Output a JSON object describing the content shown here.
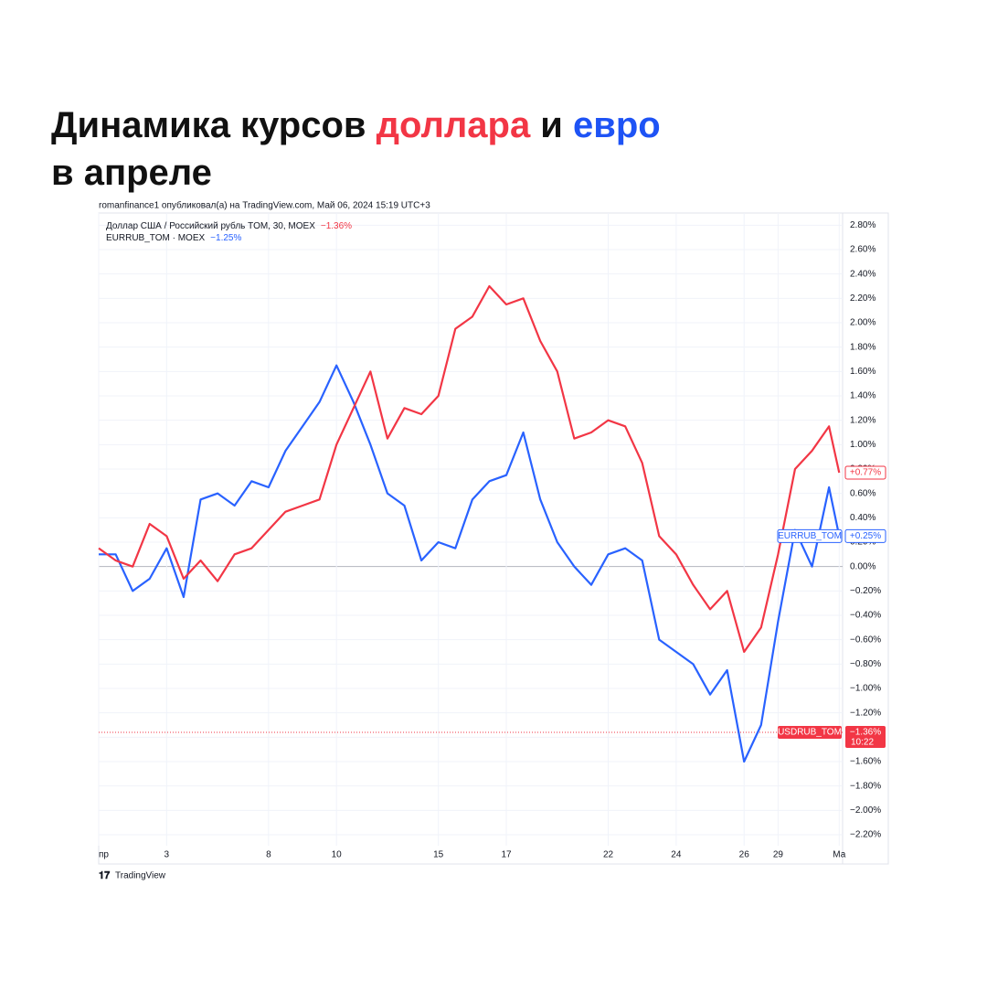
{
  "title_parts": [
    "Динамика курсов ",
    "доллара",
    " и ",
    "евро"
  ],
  "title_line2": "в апреле",
  "attribution": "romanfinance1 опубликовал(а) на TradingView.com, Май 06, 2024 15:19 UTC+3",
  "footer": "TradingView",
  "chart_data": {
    "type": "line",
    "x": [
      0,
      0.5,
      1,
      1.5,
      2,
      2.5,
      3,
      3.5,
      4,
      4.5,
      5,
      5.5,
      6,
      6.5,
      7,
      7.5,
      8,
      8.5,
      9,
      9.5,
      10,
      10.5,
      11,
      11.5,
      12,
      12.5,
      13,
      13.5,
      14,
      14.5,
      15,
      15.5,
      16,
      16.5,
      17,
      17.5,
      18,
      18.5,
      19,
      19.5,
      20,
      20.5,
      21,
      21.5,
      21.8
    ],
    "series": [
      {
        "name": "Доллар США / Российский рубль TOM, 30, MOEX",
        "change": "−1.36%",
        "badge_name": "USDRUB_TOM",
        "badge_value": "+0.77%",
        "color": "#f23645",
        "values": [
          0.15,
          0.05,
          0.0,
          0.35,
          0.25,
          -0.1,
          0.05,
          -0.12,
          0.1,
          0.15,
          0.3,
          0.45,
          0.5,
          0.55,
          1.0,
          1.3,
          1.6,
          1.05,
          1.3,
          1.25,
          1.4,
          1.95,
          2.05,
          2.3,
          2.15,
          2.2,
          1.85,
          1.6,
          1.05,
          1.1,
          1.2,
          1.15,
          0.85,
          0.25,
          0.1,
          -0.15,
          -0.35,
          -0.2,
          -0.7,
          -0.5,
          0.1,
          0.8,
          0.95,
          1.15,
          0.77
        ]
      },
      {
        "name": "EURRUB_TOM · MOEX",
        "change": "−1.25%",
        "badge_name": "EURRUB_TOM",
        "badge_value": "+0.25%",
        "color": "#2962ff",
        "values": [
          0.1,
          0.1,
          -0.2,
          -0.1,
          0.15,
          -0.25,
          0.55,
          0.6,
          0.5,
          0.7,
          0.65,
          0.95,
          1.15,
          1.35,
          1.65,
          1.35,
          1.0,
          0.6,
          0.5,
          0.05,
          0.2,
          0.15,
          0.55,
          0.7,
          0.75,
          1.1,
          0.55,
          0.2,
          0.0,
          -0.15,
          0.1,
          0.15,
          0.05,
          -0.6,
          -0.7,
          -0.8,
          -1.05,
          -0.85,
          -1.6,
          -1.3,
          -0.45,
          0.3,
          0.0,
          0.65,
          0.25
        ]
      }
    ],
    "reference_line": -1.36,
    "reference_badge": [
      "USDRUB_TOM",
      "−1.36%",
      "10:22"
    ],
    "xlim": [
      0,
      21.9
    ],
    "xticks": [
      {
        "value": 0,
        "label": "пр"
      },
      {
        "value": 2,
        "label": "3"
      },
      {
        "value": 5,
        "label": "8"
      },
      {
        "value": 7,
        "label": "10"
      },
      {
        "value": 10,
        "label": "15"
      },
      {
        "value": 12,
        "label": "17"
      },
      {
        "value": 15,
        "label": "22"
      },
      {
        "value": 17,
        "label": "24"
      },
      {
        "value": 19,
        "label": "26"
      },
      {
        "value": 20,
        "label": "29"
      },
      {
        "value": 21.8,
        "label": "Ма"
      }
    ],
    "ylim": [
      -2.29,
      2.9
    ],
    "yticks": [
      {
        "value": 2.8,
        "label": "2.80%"
      },
      {
        "value": 2.6,
        "label": "2.60%"
      },
      {
        "value": 2.4,
        "label": "2.40%"
      },
      {
        "value": 2.2,
        "label": "2.20%"
      },
      {
        "value": 2.0,
        "label": "2.00%"
      },
      {
        "value": 1.8,
        "label": "1.80%"
      },
      {
        "value": 1.6,
        "label": "1.60%"
      },
      {
        "value": 1.4,
        "label": "1.40%"
      },
      {
        "value": 1.2,
        "label": "1.20%"
      },
      {
        "value": 1.0,
        "label": "1.00%"
      },
      {
        "value": 0.8,
        "label": "0.80%"
      },
      {
        "value": 0.6,
        "label": "0.60%"
      },
      {
        "value": 0.4,
        "label": "0.40%"
      },
      {
        "value": 0.2,
        "label": "0.20%"
      },
      {
        "value": 0,
        "label": "0.00%"
      },
      {
        "value": -0.2,
        "label": "−0.20%"
      },
      {
        "value": -0.4,
        "label": "−0.40%"
      },
      {
        "value": -0.6,
        "label": "−0.60%"
      },
      {
        "value": -0.8,
        "label": "−0.80%"
      },
      {
        "value": -1.0,
        "label": "−1.00%"
      },
      {
        "value": -1.2,
        "label": "−1.20%"
      },
      {
        "value": -1.4,
        "label": "−1.40%"
      },
      {
        "value": -1.6,
        "label": "−1.60%"
      },
      {
        "value": -1.8,
        "label": "−1.80%"
      },
      {
        "value": -2.0,
        "label": "−2.00%"
      },
      {
        "value": -2.2,
        "label": "−2.20%"
      }
    ],
    "grid": true
  }
}
